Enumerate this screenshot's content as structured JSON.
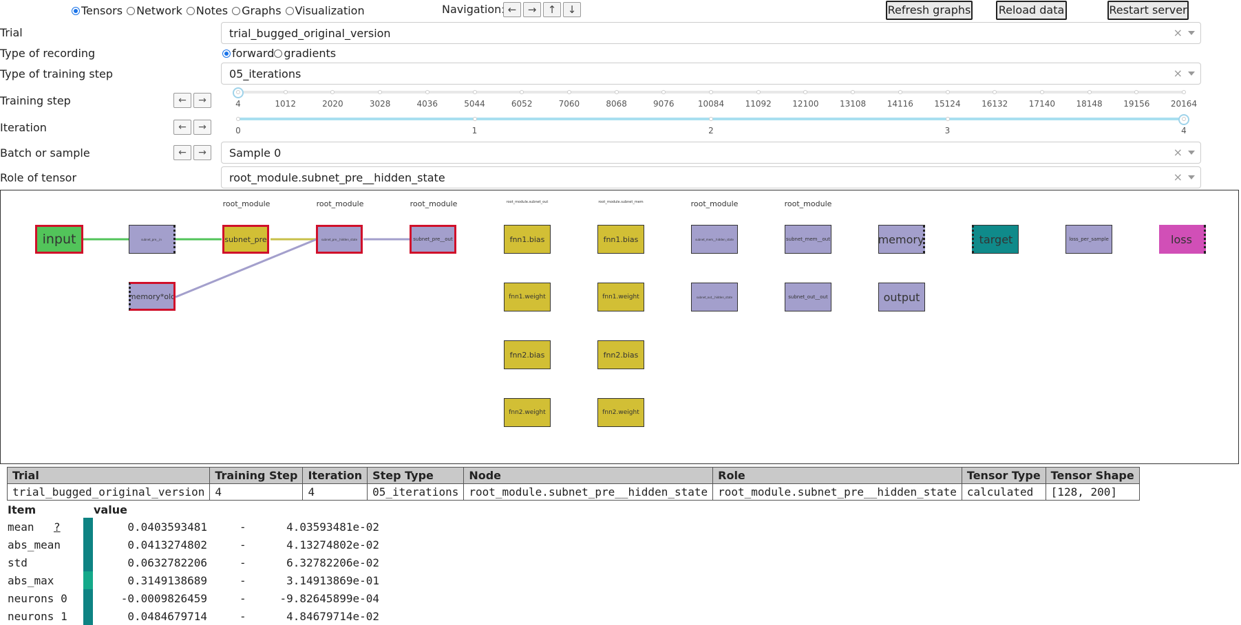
{
  "view_tabs": [
    {
      "label": "Tensors",
      "selected": true
    },
    {
      "label": "Network",
      "selected": false
    },
    {
      "label": "Notes",
      "selected": false
    },
    {
      "label": "Graphs",
      "selected": false
    },
    {
      "label": "Visualization",
      "selected": false
    }
  ],
  "navigation": {
    "label": "Navigation:",
    "buttons": [
      "←",
      "→",
      "↑",
      "↓"
    ]
  },
  "actions": {
    "refresh": "Refresh graphs",
    "reload": "Reload data",
    "restart": "Restart server"
  },
  "controls": {
    "trial_label": "Trial",
    "trial_value": "trial_bugged_original_version",
    "recording_label": "Type of recording",
    "recording_options": [
      {
        "label": "forward",
        "selected": true
      },
      {
        "label": "gradients",
        "selected": false
      }
    ],
    "training_step_type_label": "Type of training step",
    "training_step_type_value": "05_iterations",
    "training_step_label": "Training step",
    "training_step_ticks": [
      "4",
      "1012",
      "2020",
      "3028",
      "4036",
      "5044",
      "6052",
      "7060",
      "8068",
      "9076",
      "10084",
      "11092",
      "12100",
      "13108",
      "14116",
      "15124",
      "16132",
      "17140",
      "18148",
      "19156",
      "20164"
    ],
    "training_step_selected_fraction": 0,
    "iteration_label": "Iteration",
    "iteration_ticks": [
      "0",
      "1",
      "2",
      "3",
      "4"
    ],
    "iteration_selected_fraction": 1,
    "batch_label": "Batch or sample",
    "batch_value": "Sample 0",
    "role_label": "Role of tensor",
    "role_value": "root_module.subnet_pre__hidden_state",
    "clear_icon": "×",
    "prev_arrow": "←",
    "next_arrow": "→"
  },
  "graph": {
    "group_labels": [
      "root_module",
      "root_module",
      "root_module",
      "root_module.subnet_out",
      "root_module.subnet_mem",
      "root_module",
      "root_module"
    ],
    "nodes": {
      "input": "input",
      "input_node2": "subnet_pre__in",
      "memory_old": "memory*old",
      "subnet_pre": "subnet_pre",
      "hidden_state": "subnet_pre__hidden_state",
      "subnet_pre_out": "subnet_pre__out",
      "fnn1_bias_a": "fnn1.bias",
      "fnn1_weight_a": "fnn1.weight",
      "fnn2_bias_a": "fnn2.bias",
      "fnn2_weight_a": "fnn2.weight",
      "fnn1_bias_b": "fnn1.bias",
      "fnn1_weight_b": "fnn1.weight",
      "fnn2_bias_b": "fnn2.bias",
      "fnn2_weight_b": "fnn2.weight",
      "mem_hidden": "subnet_mem__hidden_state",
      "out_hidden": "subnet_out__hidden_state",
      "mem_out": "subnet_mem__out",
      "out_out": "subnet_out__out",
      "memory": "memory",
      "output": "output",
      "target": "target",
      "loss_per_sample": "loss_per_sample",
      "loss": "loss"
    },
    "colors": {
      "purple": "#a39fcc",
      "yellow": "#d2bf35",
      "green": "#52c45a",
      "teal": "#0f8a8a",
      "pink": "#d14fb7",
      "highlight": "#d0102a"
    }
  },
  "info_table": {
    "headers": [
      "Trial",
      "Training Step",
      "Iteration",
      "Step Type",
      "Node",
      "Role",
      "Tensor Type",
      "Tensor Shape"
    ],
    "row": [
      "trial_bugged_original_version",
      "4",
      "4",
      "05_iterations",
      "root_module.subnet_pre__hidden_state",
      "root_module.subnet_pre__hidden_state",
      "calculated",
      "[128, 200]"
    ]
  },
  "stats": {
    "item_header": "Item",
    "value_header": "value",
    "help": "?",
    "rows": [
      {
        "item": "mean",
        "value": "0.0403593481",
        "sep": "-",
        "sci": "4.03593481e-02",
        "bar_color": "#0e8383"
      },
      {
        "item": "abs_mean",
        "value": "0.0413274802",
        "sep": "-",
        "sci": "4.13274802e-02",
        "bar_color": "#0e8383"
      },
      {
        "item": "std",
        "value": "0.0632782206",
        "sep": "-",
        "sci": "6.32782206e-02",
        "bar_color": "#0e8383"
      },
      {
        "item": "abs_max",
        "value": "0.3149138689",
        "sep": "-",
        "sci": "3.14913869e-01",
        "bar_color": "#14a98a"
      },
      {
        "item": "neurons 0",
        "value": "-0.0009826459",
        "sep": "-",
        "sci": "-9.82645899e-04",
        "bar_color": "#0e8383"
      },
      {
        "item": "neurons 1",
        "value": "0.0484679714",
        "sep": "-",
        "sci": "4.84679714e-02",
        "bar_color": "#0e8383"
      }
    ]
  }
}
